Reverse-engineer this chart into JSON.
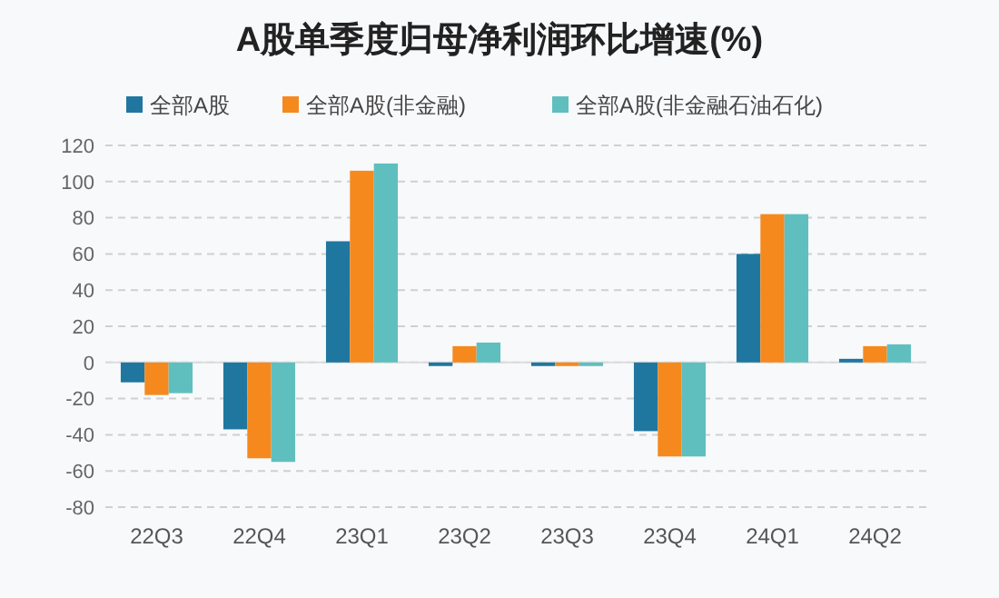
{
  "chart_data": {
    "type": "bar",
    "title": "A股单季度归母净利润环比增速(%)",
    "categories": [
      "22Q3",
      "22Q4",
      "23Q1",
      "23Q2",
      "23Q3",
      "23Q4",
      "24Q1",
      "24Q2"
    ],
    "series": [
      {
        "name": "全部A股",
        "color": "#1f77a0",
        "values": [
          -11,
          -37,
          67,
          -2,
          -2,
          -38,
          60,
          2
        ]
      },
      {
        "name": "全部A股(非金融)",
        "color": "#f5891e",
        "values": [
          -18,
          -53,
          106,
          9,
          -2,
          -52,
          82,
          9
        ]
      },
      {
        "name": "全部A股(非金融石油石化)",
        "color": "#5fbfbf",
        "values": [
          -17,
          -55,
          110,
          11,
          -2,
          -52,
          82,
          10
        ]
      }
    ],
    "ylim": [
      -80,
      120
    ],
    "yticks": [
      -80,
      -60,
      -40,
      -20,
      0,
      20,
      40,
      60,
      80,
      100,
      120
    ],
    "grid": "y",
    "legend": "top"
  }
}
